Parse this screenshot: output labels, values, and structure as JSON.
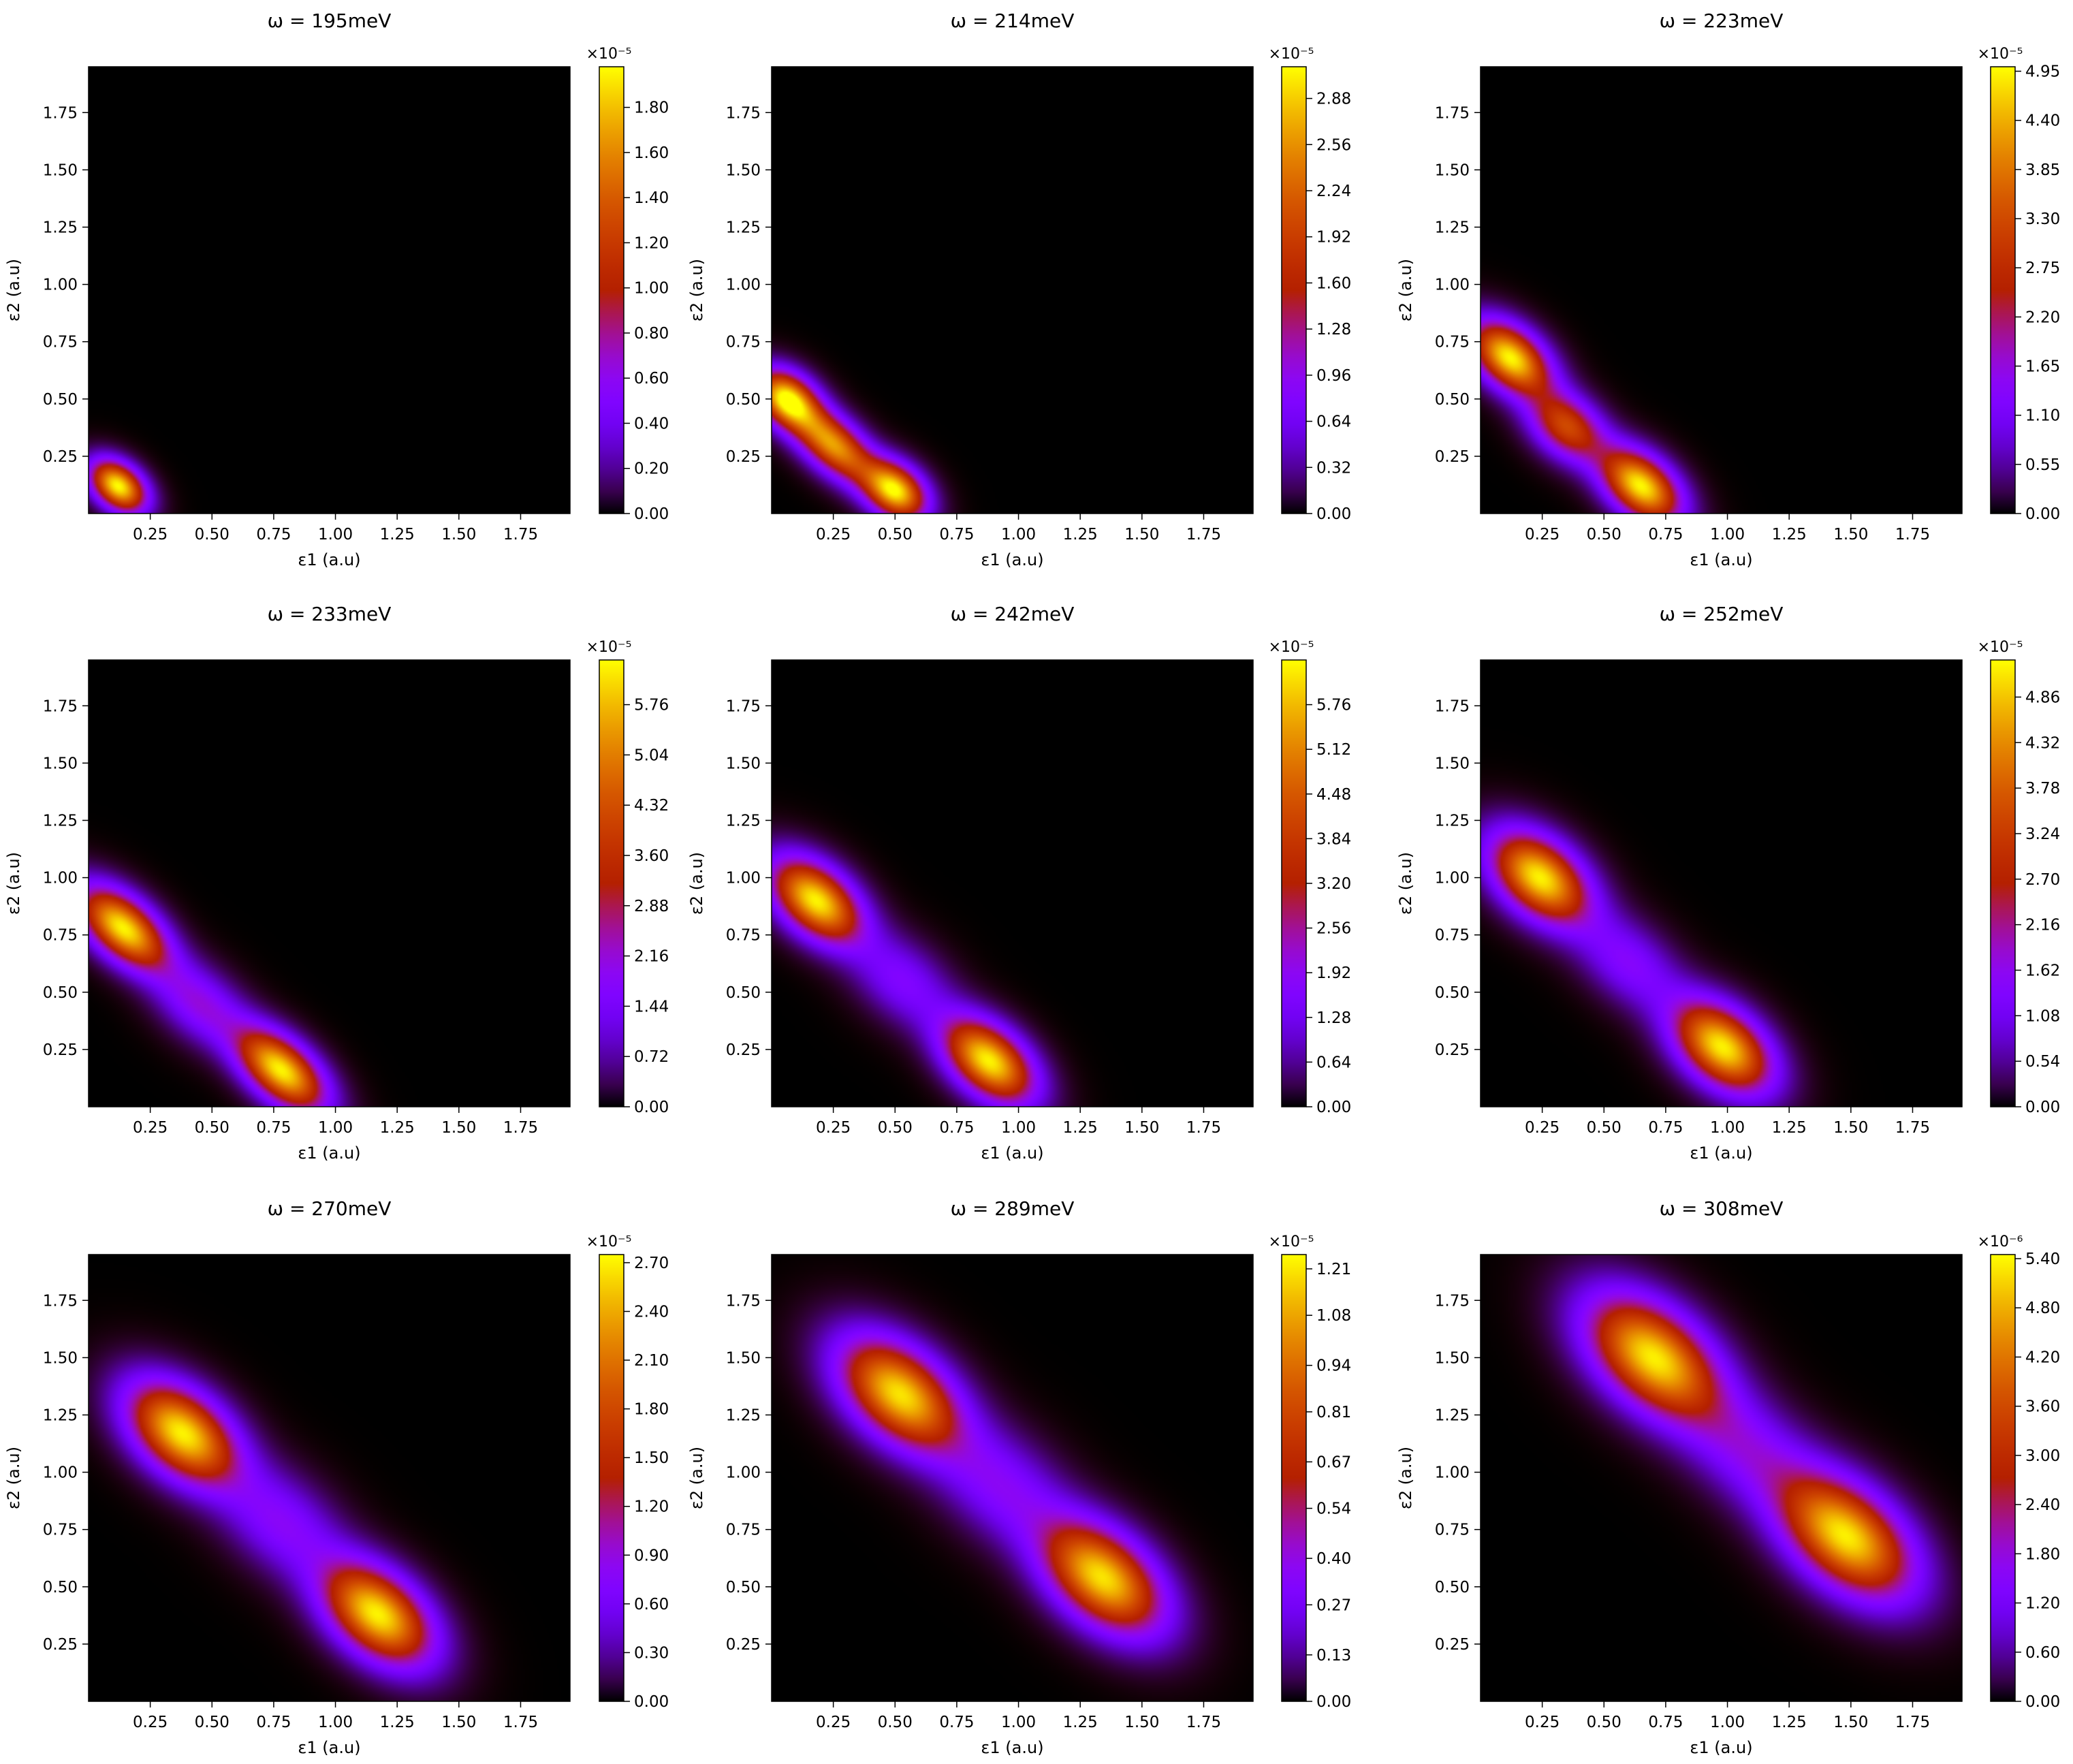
{
  "figure": {
    "description": "3x3 grid of 2D heatmaps"
  },
  "chart_data": [
    {
      "type": "heatmap",
      "title": "ω = 195meV",
      "xlabel": "ε1 (a.u)",
      "ylabel": "ε2 (a.u)",
      "xlim": [
        0.0,
        1.95
      ],
      "ylim": [
        0.0,
        1.95
      ],
      "xticks": [
        "0.25",
        "0.50",
        "0.75",
        "1.00",
        "1.25",
        "1.50",
        "1.75"
      ],
      "yticks": [
        "0.25",
        "0.50",
        "0.75",
        "1.00",
        "1.25",
        "1.50",
        "1.75"
      ],
      "colorbar": {
        "exponent": "×10⁻⁵",
        "max": 1.98,
        "ticks": [
          "0.00",
          "0.20",
          "0.40",
          "0.60",
          "0.80",
          "1.00",
          "1.20",
          "1.40",
          "1.60",
          "1.80"
        ]
      },
      "peaks": [
        {
          "e1": 0.12,
          "e2": 0.12,
          "amp": 1.98,
          "sigma_major": 0.09,
          "sigma_minor": 0.06
        }
      ]
    },
    {
      "type": "heatmap",
      "title": "ω = 214meV",
      "xlabel": "ε1 (a.u)",
      "ylabel": "ε2 (a.u)",
      "xlim": [
        0.0,
        1.95
      ],
      "ylim": [
        0.0,
        1.95
      ],
      "xticks": [
        "0.25",
        "0.50",
        "0.75",
        "1.00",
        "1.25",
        "1.50",
        "1.75"
      ],
      "yticks": [
        "0.25",
        "0.50",
        "0.75",
        "1.00",
        "1.25",
        "1.50",
        "1.75"
      ],
      "colorbar": {
        "exponent": "×10⁻⁵",
        "max": 3.1,
        "ticks": [
          "0.00",
          "0.32",
          "0.64",
          "0.96",
          "1.28",
          "1.60",
          "1.92",
          "2.24",
          "2.56",
          "2.88"
        ]
      },
      "peaks": [
        {
          "e1": 0.06,
          "e2": 0.5,
          "amp": 3.0,
          "sigma_major": 0.1,
          "sigma_minor": 0.07
        },
        {
          "e1": 0.25,
          "e2": 0.3,
          "amp": 2.6,
          "sigma_major": 0.14,
          "sigma_minor": 0.07
        },
        {
          "e1": 0.5,
          "e2": 0.1,
          "amp": 3.0,
          "sigma_major": 0.1,
          "sigma_minor": 0.07
        }
      ]
    },
    {
      "type": "heatmap",
      "title": "ω = 223meV",
      "xlabel": "ε1 (a.u)",
      "ylabel": "ε2 (a.u)",
      "xlim": [
        0.0,
        1.95
      ],
      "ylim": [
        0.0,
        1.95
      ],
      "xticks": [
        "0.25",
        "0.50",
        "0.75",
        "1.00",
        "1.25",
        "1.50",
        "1.75"
      ],
      "yticks": [
        "0.25",
        "0.50",
        "0.75",
        "1.00",
        "1.25",
        "1.50",
        "1.75"
      ],
      "colorbar": {
        "exponent": "×10⁻⁵",
        "max": 5.0,
        "ticks": [
          "0.00",
          "0.55",
          "1.10",
          "1.65",
          "2.20",
          "2.75",
          "3.30",
          "3.85",
          "4.40",
          "4.95"
        ]
      },
      "peaks": [
        {
          "e1": 0.12,
          "e2": 0.68,
          "amp": 4.95,
          "sigma_major": 0.13,
          "sigma_minor": 0.08
        },
        {
          "e1": 0.35,
          "e2": 0.38,
          "amp": 3.2,
          "sigma_major": 0.12,
          "sigma_minor": 0.08
        },
        {
          "e1": 0.65,
          "e2": 0.12,
          "amp": 4.95,
          "sigma_major": 0.13,
          "sigma_minor": 0.08
        }
      ]
    },
    {
      "type": "heatmap",
      "title": "ω = 233meV",
      "xlabel": "ε1 (a.u)",
      "ylabel": "ε2 (a.u)",
      "xlim": [
        0.0,
        1.95
      ],
      "ylim": [
        0.0,
        1.95
      ],
      "xticks": [
        "0.25",
        "0.50",
        "0.75",
        "1.00",
        "1.25",
        "1.50",
        "1.75"
      ],
      "yticks": [
        "0.25",
        "0.50",
        "0.75",
        "1.00",
        "1.25",
        "1.50",
        "1.75"
      ],
      "colorbar": {
        "exponent": "×10⁻⁵",
        "max": 6.4,
        "ticks": [
          "0.00",
          "0.72",
          "1.44",
          "2.16",
          "2.88",
          "3.60",
          "4.32",
          "5.04",
          "5.76"
        ]
      },
      "peaks": [
        {
          "e1": 0.14,
          "e2": 0.78,
          "amp": 6.3,
          "sigma_major": 0.15,
          "sigma_minor": 0.08
        },
        {
          "e1": 0.78,
          "e2": 0.16,
          "amp": 6.3,
          "sigma_major": 0.15,
          "sigma_minor": 0.08
        },
        {
          "e1": 0.45,
          "e2": 0.45,
          "amp": 2.0,
          "sigma_major": 0.15,
          "sigma_minor": 0.09
        }
      ]
    },
    {
      "type": "heatmap",
      "title": "ω = 242meV",
      "xlabel": "ε1 (a.u)",
      "ylabel": "ε2 (a.u)",
      "xlim": [
        0.0,
        1.95
      ],
      "ylim": [
        0.0,
        1.95
      ],
      "xticks": [
        "0.25",
        "0.50",
        "0.75",
        "1.00",
        "1.25",
        "1.50",
        "1.75"
      ],
      "yticks": [
        "0.25",
        "0.50",
        "0.75",
        "1.00",
        "1.25",
        "1.50",
        "1.75"
      ],
      "colorbar": {
        "exponent": "×10⁻⁵",
        "max": 6.4,
        "ticks": [
          "0.00",
          "0.64",
          "1.28",
          "1.92",
          "2.56",
          "3.20",
          "3.84",
          "4.48",
          "5.12",
          "5.76"
        ]
      },
      "peaks": [
        {
          "e1": 0.18,
          "e2": 0.9,
          "amp": 6.3,
          "sigma_major": 0.15,
          "sigma_minor": 0.09
        },
        {
          "e1": 0.88,
          "e2": 0.2,
          "amp": 6.3,
          "sigma_major": 0.15,
          "sigma_minor": 0.09
        },
        {
          "e1": 0.53,
          "e2": 0.55,
          "amp": 1.6,
          "sigma_major": 0.16,
          "sigma_minor": 0.1
        }
      ]
    },
    {
      "type": "heatmap",
      "title": "ω = 252meV",
      "xlabel": "ε1 (a.u)",
      "ylabel": "ε2 (a.u)",
      "xlim": [
        0.0,
        1.95
      ],
      "ylim": [
        0.0,
        1.95
      ],
      "xticks": [
        "0.25",
        "0.50",
        "0.75",
        "1.00",
        "1.25",
        "1.50",
        "1.75"
      ],
      "yticks": [
        "0.25",
        "0.50",
        "0.75",
        "1.00",
        "1.25",
        "1.50",
        "1.75"
      ],
      "colorbar": {
        "exponent": "×10⁻⁵",
        "max": 5.3,
        "ticks": [
          "0.00",
          "0.54",
          "1.08",
          "1.62",
          "2.16",
          "2.70",
          "3.24",
          "3.78",
          "4.32",
          "4.86"
        ]
      },
      "peaks": [
        {
          "e1": 0.24,
          "e2": 1.0,
          "amp": 5.2,
          "sigma_major": 0.16,
          "sigma_minor": 0.1
        },
        {
          "e1": 0.98,
          "e2": 0.26,
          "amp": 5.2,
          "sigma_major": 0.16,
          "sigma_minor": 0.1
        },
        {
          "e1": 0.6,
          "e2": 0.63,
          "amp": 1.4,
          "sigma_major": 0.17,
          "sigma_minor": 0.1
        }
      ]
    },
    {
      "type": "heatmap",
      "title": "ω = 270meV",
      "xlabel": "ε1 (a.u)",
      "ylabel": "ε2 (a.u)",
      "xlim": [
        0.0,
        1.95
      ],
      "ylim": [
        0.0,
        1.95
      ],
      "xticks": [
        "0.25",
        "0.50",
        "0.75",
        "1.00",
        "1.25",
        "1.50",
        "1.75"
      ],
      "yticks": [
        "0.25",
        "0.50",
        "0.75",
        "1.00",
        "1.25",
        "1.50",
        "1.75"
      ],
      "colorbar": {
        "exponent": "×10⁻⁵",
        "max": 2.75,
        "ticks": [
          "0.00",
          "0.30",
          "0.60",
          "0.90",
          "1.20",
          "1.50",
          "1.80",
          "2.10",
          "2.40",
          "2.70"
        ]
      },
      "peaks": [
        {
          "e1": 0.38,
          "e2": 1.17,
          "amp": 2.7,
          "sigma_major": 0.18,
          "sigma_minor": 0.11
        },
        {
          "e1": 1.17,
          "e2": 0.38,
          "amp": 2.7,
          "sigma_major": 0.18,
          "sigma_minor": 0.11
        },
        {
          "e1": 0.78,
          "e2": 0.78,
          "amp": 0.75,
          "sigma_major": 0.19,
          "sigma_minor": 0.12
        }
      ]
    },
    {
      "type": "heatmap",
      "title": "ω = 289meV",
      "xlabel": "ε1 (a.u)",
      "ylabel": "ε2 (a.u)",
      "xlim": [
        0.0,
        1.95
      ],
      "ylim": [
        0.0,
        1.95
      ],
      "xticks": [
        "0.25",
        "0.50",
        "0.75",
        "1.00",
        "1.25",
        "1.50",
        "1.75"
      ],
      "yticks": [
        "0.25",
        "0.50",
        "0.75",
        "1.00",
        "1.25",
        "1.50",
        "1.75"
      ],
      "colorbar": {
        "exponent": "×10⁻⁵",
        "max": 1.25,
        "ticks": [
          "0.00",
          "0.13",
          "0.27",
          "0.40",
          "0.54",
          "0.67",
          "0.81",
          "0.94",
          "1.08",
          "1.21"
        ]
      },
      "peaks": [
        {
          "e1": 0.52,
          "e2": 1.34,
          "amp": 1.2,
          "sigma_major": 0.2,
          "sigma_minor": 0.12
        },
        {
          "e1": 1.34,
          "e2": 0.54,
          "amp": 1.2,
          "sigma_major": 0.2,
          "sigma_minor": 0.12
        },
        {
          "e1": 0.93,
          "e2": 0.94,
          "amp": 0.33,
          "sigma_major": 0.2,
          "sigma_minor": 0.13
        }
      ]
    },
    {
      "type": "heatmap",
      "title": "ω = 308meV",
      "xlabel": "ε1 (a.u)",
      "ylabel": "ε2 (a.u)",
      "xlim": [
        0.0,
        1.95
      ],
      "ylim": [
        0.0,
        1.95
      ],
      "xticks": [
        "0.25",
        "0.50",
        "0.75",
        "1.00",
        "1.25",
        "1.50",
        "1.75"
      ],
      "yticks": [
        "0.25",
        "0.50",
        "0.75",
        "1.00",
        "1.25",
        "1.50",
        "1.75"
      ],
      "colorbar": {
        "exponent": "×10⁻⁶",
        "max": 5.45,
        "ticks": [
          "0.00",
          "0.60",
          "1.20",
          "1.80",
          "2.40",
          "3.00",
          "3.60",
          "4.20",
          "4.80",
          "5.40"
        ]
      },
      "peaks": [
        {
          "e1": 0.7,
          "e2": 1.5,
          "amp": 5.3,
          "sigma_major": 0.22,
          "sigma_minor": 0.13
        },
        {
          "e1": 1.48,
          "e2": 0.72,
          "amp": 5.3,
          "sigma_major": 0.22,
          "sigma_minor": 0.13
        },
        {
          "e1": 1.08,
          "e2": 1.1,
          "amp": 1.4,
          "sigma_major": 0.21,
          "sigma_minor": 0.13
        }
      ]
    }
  ]
}
